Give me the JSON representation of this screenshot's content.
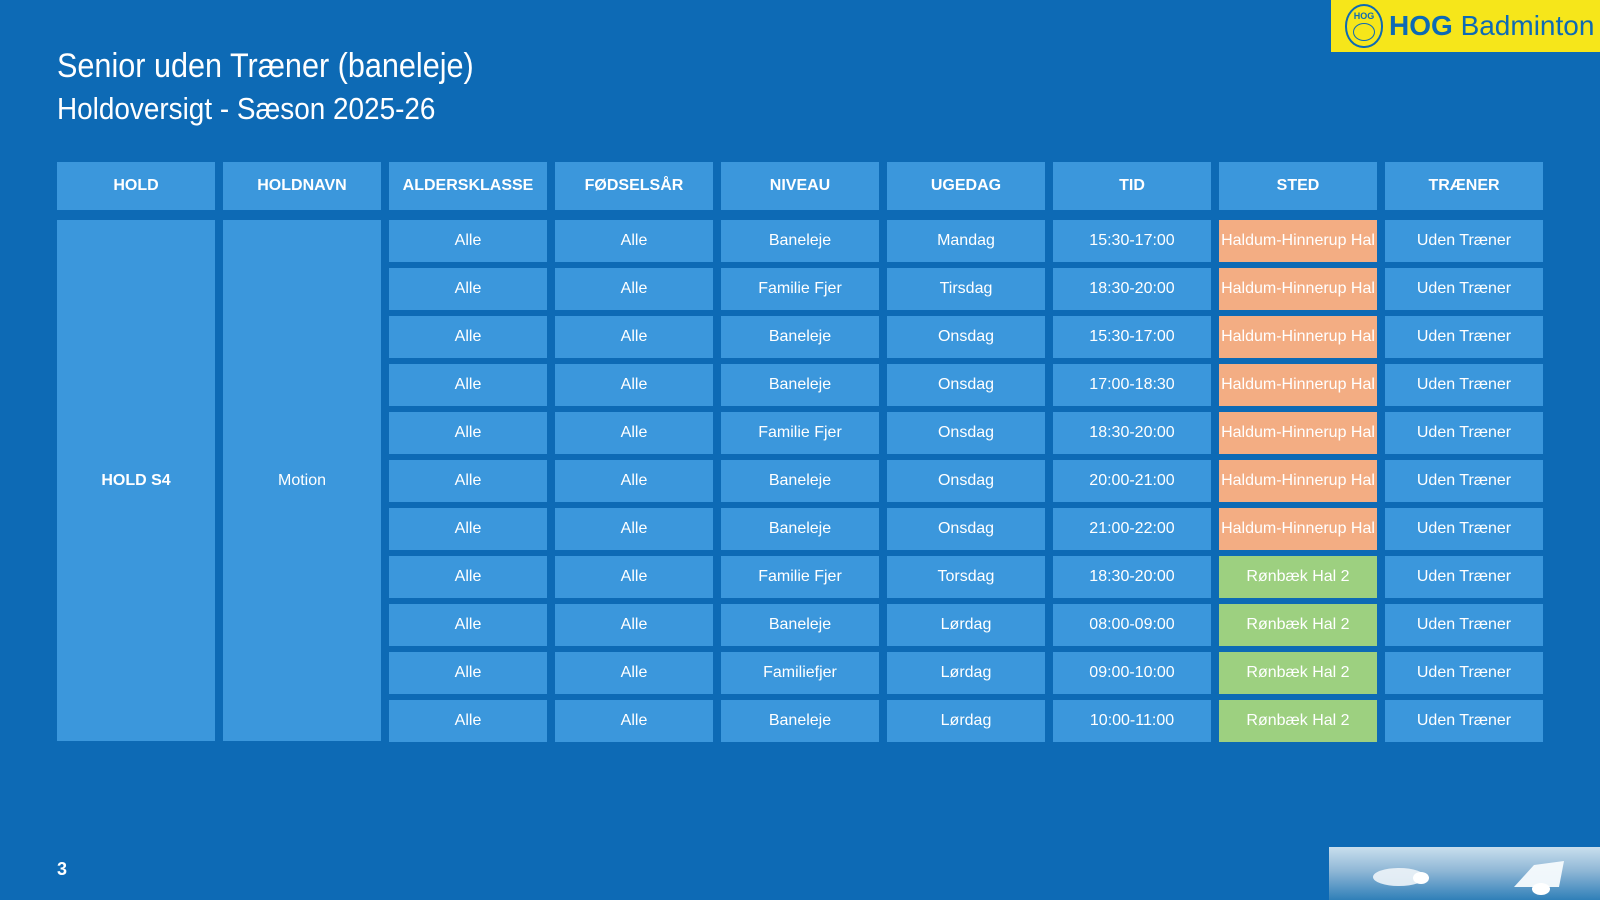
{
  "logo": {
    "badge_text": "HOG",
    "brand_bold": "HOG",
    "brand_rest": "Badminton"
  },
  "header": {
    "title": "Senior uden Træner (baneleje)",
    "subtitle": "Holdoversigt - Sæson 2025-26"
  },
  "table": {
    "columns": [
      "HOLD",
      "HOLDNAVN",
      "ALDERSKLASSE",
      "FØDSELSÅR",
      "NIVEAU",
      "UGEDAG",
      "TID",
      "STED",
      "TRÆNER"
    ],
    "hold": "HOLD S4",
    "holdnavn": "Motion",
    "rows": [
      {
        "alder": "Alle",
        "foedsel": "Alle",
        "niveau": "Baneleje",
        "ugedag": "Mandag",
        "tid": "15:30-17:00",
        "sted": "Haldum-Hinnerup Hal",
        "traener": "Uden Træner",
        "sted_color": "#f3ad83"
      },
      {
        "alder": "Alle",
        "foedsel": "Alle",
        "niveau": "Familie Fjer",
        "ugedag": "Tirsdag",
        "tid": "18:30-20:00",
        "sted": "Haldum-Hinnerup Hal",
        "traener": "Uden Træner",
        "sted_color": "#f3ad83"
      },
      {
        "alder": "Alle",
        "foedsel": "Alle",
        "niveau": "Baneleje",
        "ugedag": "Onsdag",
        "tid": "15:30-17:00",
        "sted": "Haldum-Hinnerup Hal",
        "traener": "Uden Træner",
        "sted_color": "#f3ad83"
      },
      {
        "alder": "Alle",
        "foedsel": "Alle",
        "niveau": "Baneleje",
        "ugedag": "Onsdag",
        "tid": "17:00-18:30",
        "sted": "Haldum-Hinnerup Hal",
        "traener": "Uden Træner",
        "sted_color": "#f3ad83"
      },
      {
        "alder": "Alle",
        "foedsel": "Alle",
        "niveau": "Familie Fjer",
        "ugedag": "Onsdag",
        "tid": "18:30-20:00",
        "sted": "Haldum-Hinnerup Hal",
        "traener": "Uden Træner",
        "sted_color": "#f3ad83"
      },
      {
        "alder": "Alle",
        "foedsel": "Alle",
        "niveau": "Baneleje",
        "ugedag": "Onsdag",
        "tid": "20:00-21:00",
        "sted": "Haldum-Hinnerup Hal",
        "traener": "Uden Træner",
        "sted_color": "#f3ad83"
      },
      {
        "alder": "Alle",
        "foedsel": "Alle",
        "niveau": "Baneleje",
        "ugedag": "Onsdag",
        "tid": "21:00-22:00",
        "sted": "Haldum-Hinnerup Hal",
        "traener": "Uden Træner",
        "sted_color": "#f3ad83"
      },
      {
        "alder": "Alle",
        "foedsel": "Alle",
        "niveau": "Familie Fjer",
        "ugedag": "Torsdag",
        "tid": "18:30-20:00",
        "sted": "Rønbæk Hal 2",
        "traener": "Uden Træner",
        "sted_color": "#9dd080"
      },
      {
        "alder": "Alle",
        "foedsel": "Alle",
        "niveau": "Baneleje",
        "ugedag": "Lørdag",
        "tid": "08:00-09:00",
        "sted": "Rønbæk Hal 2",
        "traener": "Uden Træner",
        "sted_color": "#9dd080"
      },
      {
        "alder": "Alle",
        "foedsel": "Alle",
        "niveau": "Familiefjer",
        "ugedag": "Lørdag",
        "tid": "09:00-10:00",
        "sted": "Rønbæk Hal 2",
        "traener": "Uden Træner",
        "sted_color": "#9dd080"
      },
      {
        "alder": "Alle",
        "foedsel": "Alle",
        "niveau": "Baneleje",
        "ugedag": "Lørdag",
        "tid": "10:00-11:00",
        "sted": "Rønbæk Hal 2",
        "traener": "Uden Træner",
        "sted_color": "#9dd080"
      }
    ]
  },
  "footer": {
    "page_number": "3"
  },
  "colors": {
    "background": "#0d6ab5",
    "cell": "#3b97dc",
    "logo_yellow": "#f6e61a",
    "haldum": "#f3ad83",
    "ronbaek": "#9dd080"
  }
}
